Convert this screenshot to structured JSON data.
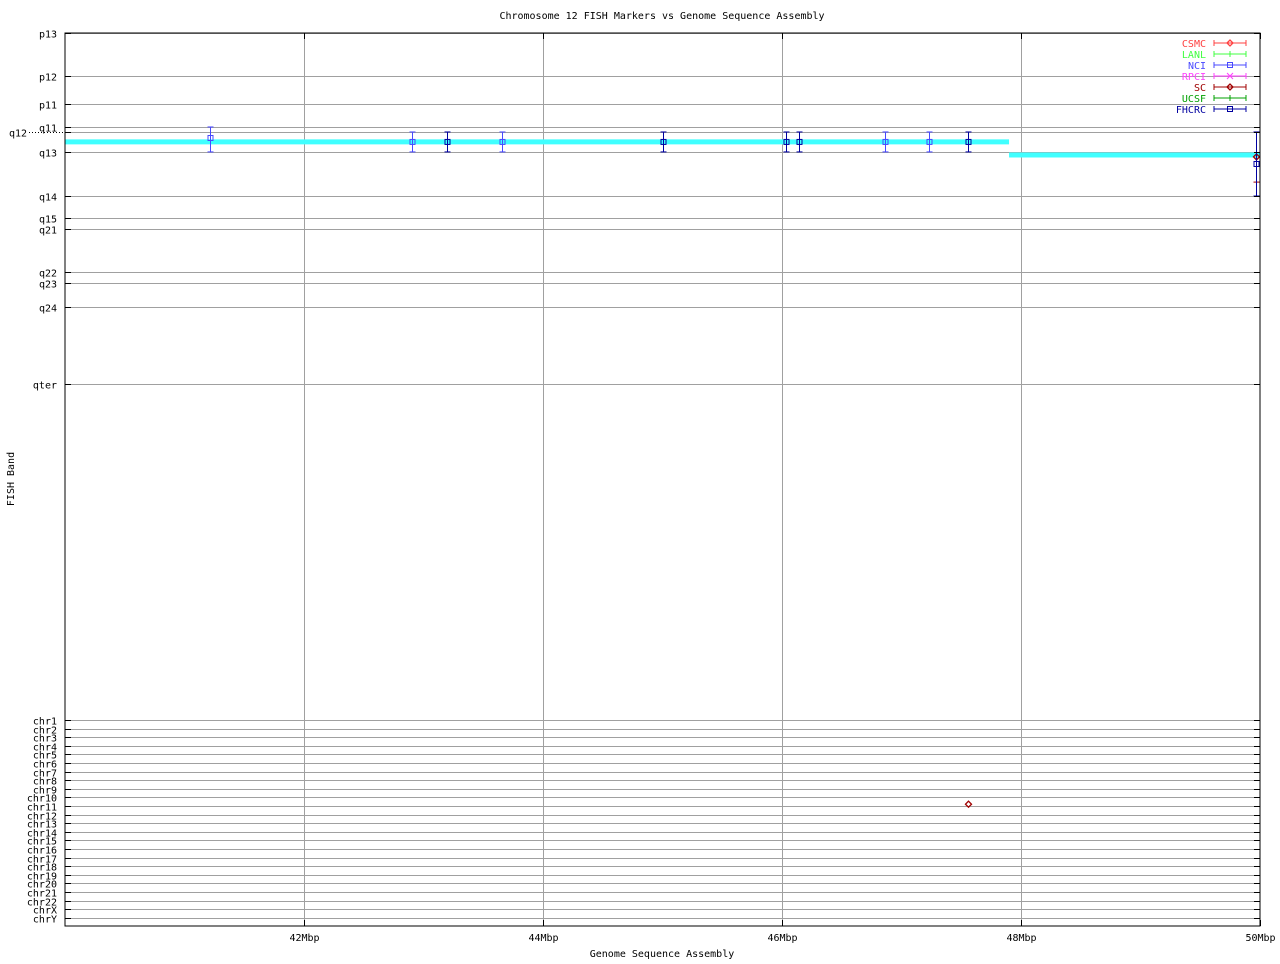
{
  "chart_data": {
    "type": "scatter",
    "title": "Chromosome 12 FISH Markers vs Genome Sequence Assembly",
    "xlabel": "Genome Sequence Assembly",
    "ylabel": "FISH Band",
    "xlim": [
      40,
      50
    ],
    "ylim": [
      0,
      340.2
    ],
    "y_inverted": true,
    "grid": true,
    "legend_position": "top-right",
    "x_ticks": [
      {
        "value": 42,
        "label": "42Mbp"
      },
      {
        "value": 44,
        "label": "44Mbp"
      },
      {
        "value": 46,
        "label": "46Mbp"
      },
      {
        "value": 48,
        "label": "48Mbp"
      },
      {
        "value": 50,
        "label": "50Mbp"
      }
    ],
    "y_ticks": [
      {
        "value": 0,
        "label": "p13"
      },
      {
        "value": 16.4,
        "label": "p12"
      },
      {
        "value": 27.1,
        "label": "p11"
      },
      {
        "value": 35.8,
        "label": "q11"
      },
      {
        "value": 37.7,
        "label": "q12"
      },
      {
        "value": 45.3,
        "label": "q13"
      },
      {
        "value": 62.1,
        "label": "q14"
      },
      {
        "value": 70.5,
        "label": "q15"
      },
      {
        "value": 74.7,
        "label": "q21"
      },
      {
        "value": 91.1,
        "label": "q22"
      },
      {
        "value": 95.3,
        "label": "q23"
      },
      {
        "value": 104.4,
        "label": "q24"
      },
      {
        "value": 133.8,
        "label": "qter"
      },
      {
        "value": 261.7,
        "label": "chr1"
      },
      {
        "value": 265.0,
        "label": "chr2"
      },
      {
        "value": 268.3,
        "label": "chr3"
      },
      {
        "value": 271.5,
        "label": "chr4"
      },
      {
        "value": 274.8,
        "label": "chr5"
      },
      {
        "value": 278.1,
        "label": "chr6"
      },
      {
        "value": 281.4,
        "label": "chr7"
      },
      {
        "value": 284.7,
        "label": "chr8"
      },
      {
        "value": 287.9,
        "label": "chr9"
      },
      {
        "value": 291.2,
        "label": "chr10"
      },
      {
        "value": 294.5,
        "label": "chr11"
      },
      {
        "value": 297.8,
        "label": "chr12"
      },
      {
        "value": 301.1,
        "label": "chr13"
      },
      {
        "value": 304.3,
        "label": "chr14"
      },
      {
        "value": 307.6,
        "label": "chr15"
      },
      {
        "value": 310.9,
        "label": "chr16"
      },
      {
        "value": 314.2,
        "label": "chr17"
      },
      {
        "value": 317.5,
        "label": "chr18"
      },
      {
        "value": 320.7,
        "label": "chr19"
      },
      {
        "value": 324.0,
        "label": "chr20"
      },
      {
        "value": 327.3,
        "label": "chr21"
      },
      {
        "value": 330.6,
        "label": "chr22"
      },
      {
        "value": 333.9,
        "label": "chrX"
      },
      {
        "value": 337.1,
        "label": "chrY"
      }
    ],
    "assembly_line": {
      "color": "#40ffff",
      "segments": [
        {
          "x": [
            40,
            47.9
          ],
          "y": 41.5
        },
        {
          "x": [
            47.9,
            50
          ],
          "y": 46.5
        }
      ]
    },
    "series": [
      {
        "name": "CSMC",
        "color": "#ff4040",
        "marker": "diamond",
        "points": []
      },
      {
        "name": "LANL",
        "color": "#40ff40",
        "marker": "tick",
        "points": []
      },
      {
        "name": "NCI",
        "color": "#4848ff",
        "marker": "square",
        "points": [
          {
            "x": 41.21,
            "y": 40.0,
            "ylow": 35.8,
            "yhigh": 45.3
          },
          {
            "x": 42.9,
            "y": 41.5,
            "ylow": 37.7,
            "yhigh": 45.3
          },
          {
            "x": 43.66,
            "y": 41.5,
            "ylow": 37.7,
            "yhigh": 45.3
          },
          {
            "x": 46.86,
            "y": 41.5,
            "ylow": 37.7,
            "yhigh": 45.3
          },
          {
            "x": 47.23,
            "y": 41.5,
            "ylow": 37.7,
            "yhigh": 45.3
          }
        ]
      },
      {
        "name": "RPCI",
        "color": "#ff40ff",
        "marker": "cross",
        "points": []
      },
      {
        "name": "SC",
        "color": "#a00000",
        "marker": "diamond",
        "points": [
          {
            "x": 49.97,
            "y": 47.2,
            "ylow": 37.7,
            "yhigh": 56.8
          },
          {
            "x": 47.56,
            "y": 293.8
          }
        ]
      },
      {
        "name": "UCSF",
        "color": "#00a000",
        "marker": "tick",
        "points": []
      },
      {
        "name": "FHCRC",
        "color": "#0000a0",
        "marker": "square",
        "points": [
          {
            "x": 43.2,
            "y": 41.5,
            "ylow": 37.7,
            "yhigh": 45.3
          },
          {
            "x": 45.0,
            "y": 41.5,
            "ylow": 37.7,
            "yhigh": 45.3
          },
          {
            "x": 46.03,
            "y": 41.5,
            "ylow": 37.7,
            "yhigh": 45.3
          },
          {
            "x": 46.14,
            "y": 41.5,
            "ylow": 37.7,
            "yhigh": 45.3
          },
          {
            "x": 47.56,
            "y": 41.5,
            "ylow": 37.7,
            "yhigh": 45.3
          },
          {
            "x": 49.97,
            "y": 49.9,
            "ylow": 37.7,
            "yhigh": 62.1
          }
        ]
      }
    ]
  }
}
